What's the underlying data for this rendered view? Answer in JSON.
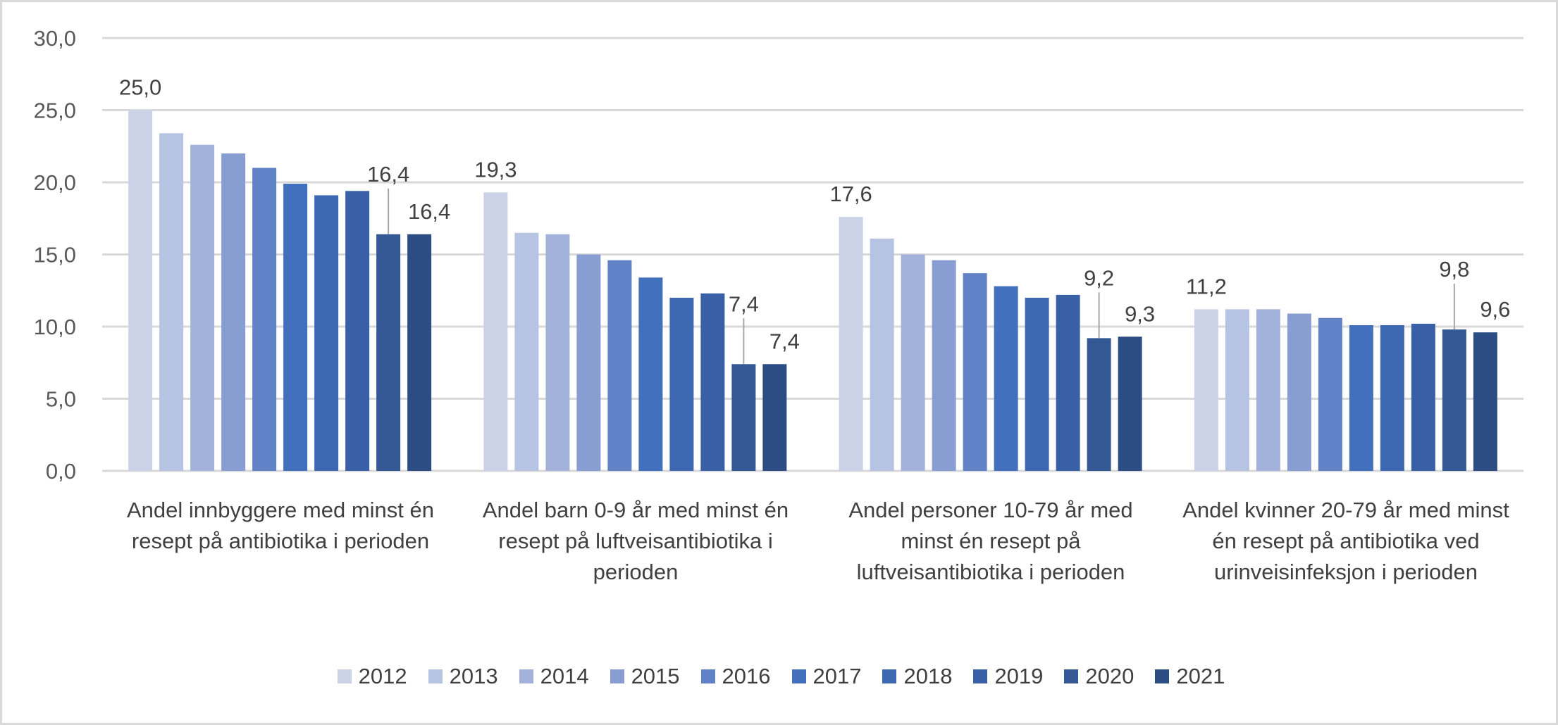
{
  "chart_data": {
    "type": "bar",
    "categories": [
      "Andel innbyggere med minst én resept på antibiotika i perioden",
      "Andel barn 0-9 år med minst én resept på luftveisantibiotika i perioden",
      "Andel personer 10-79 år med minst én resept på luftveisantibiotika i perioden",
      "Andel kvinner 20-79 år med minst én resept på antibiotika ved urinveisinfeksjon i perioden"
    ],
    "series": [
      {
        "name": "2012",
        "color": "#CBD2E7",
        "values": [
          25.0,
          19.3,
          17.6,
          11.2
        ]
      },
      {
        "name": "2013",
        "color": "#B7C3E2",
        "values": [
          23.4,
          16.5,
          16.1,
          11.2
        ]
      },
      {
        "name": "2014",
        "color": "#A2B2DA",
        "values": [
          22.6,
          16.4,
          15.0,
          11.2
        ]
      },
      {
        "name": "2015",
        "color": "#889ED3",
        "values": [
          22.0,
          15.0,
          14.6,
          10.9
        ]
      },
      {
        "name": "2016",
        "color": "#6182C7",
        "values": [
          21.0,
          14.6,
          13.7,
          10.6
        ]
      },
      {
        "name": "2017",
        "color": "#4370BD",
        "values": [
          19.9,
          13.4,
          12.8,
          10.1
        ]
      },
      {
        "name": "2018",
        "color": "#3E67B2",
        "values": [
          19.1,
          12.0,
          12.0,
          10.1
        ]
      },
      {
        "name": "2019",
        "color": "#3960A6",
        "values": [
          19.4,
          12.3,
          12.2,
          10.2
        ]
      },
      {
        "name": "2020",
        "color": "#335894",
        "values": [
          16.4,
          7.4,
          9.2,
          9.8
        ]
      },
      {
        "name": "2021",
        "color": "#2C4C84",
        "values": [
          16.4,
          7.4,
          9.3,
          9.6
        ]
      }
    ],
    "data_labels": [
      {
        "series": "2012",
        "labels": [
          "25,0",
          "19,3",
          "17,6",
          "11,2"
        ]
      },
      {
        "series": "2020",
        "labels": [
          "16,4",
          "7,4",
          "9,2",
          "9,8"
        ]
      },
      {
        "series": "2021",
        "labels": [
          "16,4",
          "7,4",
          "9,3",
          "9,6"
        ]
      }
    ],
    "yticks": [
      "0,0",
      "5,0",
      "10,0",
      "15,0",
      "20,0",
      "25,0",
      "30,0"
    ],
    "ylim": [
      0,
      30
    ],
    "grid": true,
    "legend": "bottom",
    "title": "",
    "xlabel": "",
    "ylabel": ""
  }
}
